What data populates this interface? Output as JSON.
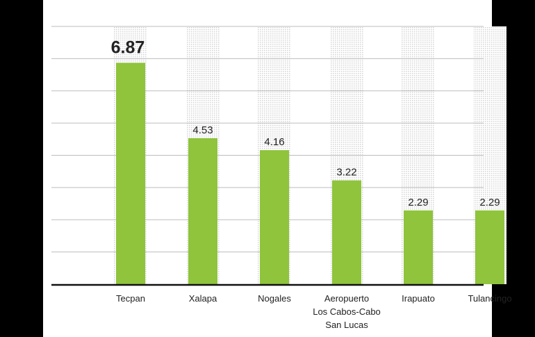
{
  "chart_data": {
    "type": "bar",
    "categories": [
      "Tecpan",
      "Xalapa",
      "Nogales",
      "Aeropuerto Los Cabos-Cabo San Lucas",
      "Irapuato",
      "Tulancingo"
    ],
    "category_lines": [
      [
        "Tecpan"
      ],
      [
        "Xalapa"
      ],
      [
        "Nogales"
      ],
      [
        "Aeropuerto",
        "Los Cabos-Cabo",
        "San Lucas"
      ],
      [
        "Irapuato"
      ],
      [
        "Tulancingo"
      ]
    ],
    "values": [
      6.87,
      4.53,
      4.16,
      3.22,
      2.29,
      2.29
    ],
    "value_labels": [
      "6.87",
      "4.53",
      "4.16",
      "3.22",
      "2.29",
      "2.29"
    ],
    "ylim": [
      0,
      8
    ],
    "grid": true,
    "title": "",
    "xlabel": "",
    "ylabel": ""
  },
  "colors": {
    "bar": "#8fc43c",
    "bar_column": "#e6e6e6",
    "grid": "#bdbdbd",
    "axis": "#111111",
    "text": "#222222",
    "frame": "#000000",
    "background": "#ffffff"
  }
}
